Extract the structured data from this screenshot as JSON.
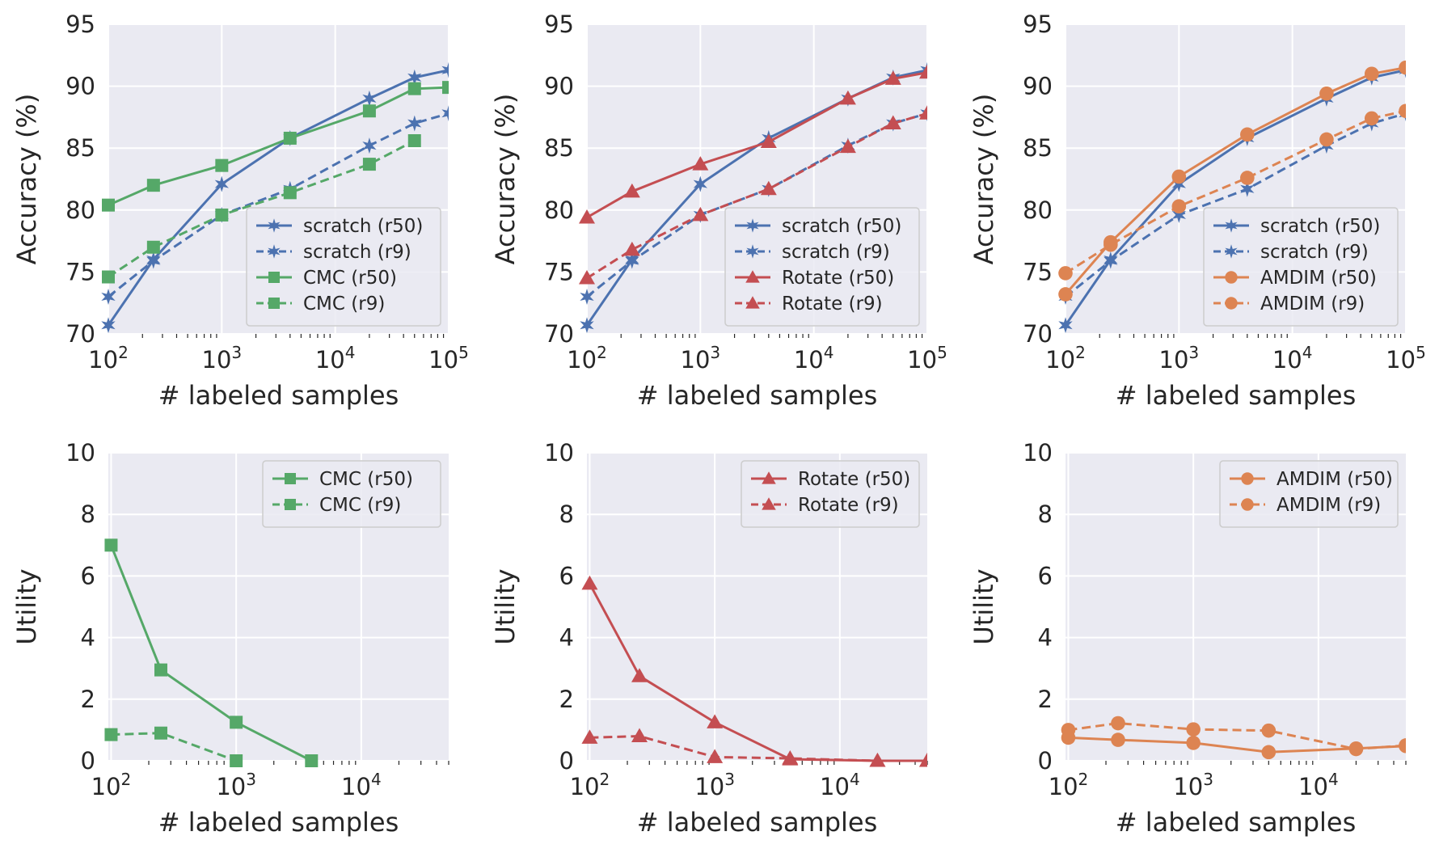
{
  "colors": {
    "scratch": "#4c72b0",
    "cmc": "#55a868",
    "rotate": "#c44e52",
    "amdim": "#dd8452",
    "panel_bg": "#eaeaf2",
    "grid": "#ffffff",
    "text": "#262626"
  },
  "chart_data": [
    {
      "type": "line",
      "xscale": "log",
      "xlim": [
        100,
        100000
      ],
      "ylim": [
        70,
        95
      ],
      "xticks": [
        100,
        1000,
        10000,
        100000
      ],
      "yticks": [
        70,
        75,
        80,
        85,
        90,
        95
      ],
      "xlabel": "# labeled samples",
      "ylabel": "Accuracy (%)",
      "legend": "lower-right",
      "series": [
        {
          "name": "scratch (r50)",
          "color": "#4c72b0",
          "marker": "star",
          "style": "solid",
          "x": [
            100,
            250,
            1000,
            4000,
            20000,
            50000,
            100000
          ],
          "y": [
            70.7,
            76.0,
            82.1,
            85.8,
            89.0,
            90.7,
            91.3
          ]
        },
        {
          "name": "scratch (r9)",
          "color": "#4c72b0",
          "marker": "star",
          "style": "dashed",
          "x": [
            100,
            250,
            1000,
            4000,
            20000,
            50000,
            100000
          ],
          "y": [
            73.0,
            75.9,
            79.6,
            81.7,
            85.2,
            87.0,
            87.8
          ]
        },
        {
          "name": "CMC (r50)",
          "color": "#55a868",
          "marker": "square",
          "style": "solid",
          "x": [
            100,
            250,
            1000,
            4000,
            20000,
            50000,
            100000
          ],
          "y": [
            80.4,
            82.0,
            83.6,
            85.8,
            88.0,
            89.8,
            89.9
          ]
        },
        {
          "name": "CMC (r9)",
          "color": "#55a868",
          "marker": "square",
          "style": "dashed",
          "x": [
            100,
            250,
            1000,
            4000,
            20000,
            50000
          ],
          "y": [
            74.6,
            77.0,
            79.6,
            81.4,
            83.7,
            85.6
          ]
        }
      ]
    },
    {
      "type": "line",
      "xscale": "log",
      "xlim": [
        100,
        100000
      ],
      "ylim": [
        70,
        95
      ],
      "xticks": [
        100,
        1000,
        10000,
        100000
      ],
      "yticks": [
        70,
        75,
        80,
        85,
        90,
        95
      ],
      "xlabel": "# labeled samples",
      "ylabel": "Accuracy (%)",
      "legend": "lower-right",
      "series": [
        {
          "name": "scratch (r50)",
          "color": "#4c72b0",
          "marker": "star",
          "style": "solid",
          "x": [
            100,
            250,
            1000,
            4000,
            20000,
            50000,
            100000
          ],
          "y": [
            70.7,
            76.0,
            82.1,
            85.8,
            89.0,
            90.7,
            91.3
          ]
        },
        {
          "name": "scratch (r9)",
          "color": "#4c72b0",
          "marker": "star",
          "style": "dashed",
          "x": [
            100,
            250,
            1000,
            4000,
            20000,
            50000,
            100000
          ],
          "y": [
            73.0,
            75.9,
            79.6,
            81.7,
            85.2,
            87.0,
            87.8
          ]
        },
        {
          "name": "Rotate (r50)",
          "color": "#c44e52",
          "marker": "triangle",
          "style": "solid",
          "x": [
            100,
            250,
            1000,
            4000,
            20000,
            50000,
            100000
          ],
          "y": [
            79.4,
            81.5,
            83.7,
            85.5,
            89.0,
            90.6,
            91.1
          ]
        },
        {
          "name": "Rotate (r9)",
          "color": "#c44e52",
          "marker": "triangle",
          "style": "dashed",
          "x": [
            100,
            250,
            1000,
            4000,
            20000,
            50000,
            100000
          ],
          "y": [
            74.5,
            76.8,
            79.6,
            81.7,
            85.1,
            87.0,
            87.8
          ]
        }
      ]
    },
    {
      "type": "line",
      "xscale": "log",
      "xlim": [
        100,
        100000
      ],
      "ylim": [
        70,
        95
      ],
      "xticks": [
        100,
        1000,
        10000,
        100000
      ],
      "yticks": [
        70,
        75,
        80,
        85,
        90,
        95
      ],
      "xlabel": "# labeled samples",
      "ylabel": "Accuracy (%)",
      "legend": "lower-right",
      "series": [
        {
          "name": "scratch (r50)",
          "color": "#4c72b0",
          "marker": "star",
          "style": "solid",
          "x": [
            100,
            250,
            1000,
            4000,
            20000,
            50000,
            100000
          ],
          "y": [
            70.7,
            76.0,
            82.1,
            85.8,
            89.0,
            90.7,
            91.3
          ]
        },
        {
          "name": "scratch (r9)",
          "color": "#4c72b0",
          "marker": "star",
          "style": "dashed",
          "x": [
            100,
            250,
            1000,
            4000,
            20000,
            50000,
            100000
          ],
          "y": [
            73.0,
            75.9,
            79.6,
            81.7,
            85.2,
            87.0,
            87.8
          ]
        },
        {
          "name": "AMDIM (r50)",
          "color": "#dd8452",
          "marker": "circle",
          "style": "solid",
          "x": [
            100,
            250,
            1000,
            4000,
            20000,
            50000,
            100000
          ],
          "y": [
            73.2,
            77.4,
            82.7,
            86.1,
            89.4,
            91.0,
            91.5
          ]
        },
        {
          "name": "AMDIM (r9)",
          "color": "#dd8452",
          "marker": "circle",
          "style": "dashed",
          "x": [
            100,
            250,
            1000,
            4000,
            20000,
            50000,
            100000
          ],
          "y": [
            74.9,
            77.2,
            80.3,
            82.6,
            85.7,
            87.4,
            88.0
          ]
        }
      ]
    },
    {
      "type": "line",
      "xscale": "log",
      "xlim": [
        95,
        50000
      ],
      "ylim": [
        0,
        10
      ],
      "xticks": [
        100,
        1000,
        10000
      ],
      "yticks": [
        0,
        2,
        4,
        6,
        8,
        10
      ],
      "xlabel": "# labeled samples",
      "ylabel": "Utility",
      "legend": "upper-right",
      "series": [
        {
          "name": "CMC (r50)",
          "color": "#55a868",
          "marker": "square",
          "style": "solid",
          "x": [
            100,
            250,
            1000,
            4000
          ],
          "y": [
            7.0,
            2.95,
            1.25,
            0.0
          ]
        },
        {
          "name": "CMC (r9)",
          "color": "#55a868",
          "marker": "square",
          "style": "dashed",
          "x": [
            100,
            250,
            1000
          ],
          "y": [
            0.85,
            0.9,
            0.0
          ]
        }
      ]
    },
    {
      "type": "line",
      "xscale": "log",
      "xlim": [
        95,
        50000
      ],
      "ylim": [
        0,
        10
      ],
      "xticks": [
        100,
        1000,
        10000
      ],
      "yticks": [
        0,
        2,
        4,
        6,
        8,
        10
      ],
      "xlabel": "# labeled samples",
      "ylabel": "Utility",
      "legend": "upper-right",
      "series": [
        {
          "name": "Rotate (r50)",
          "color": "#c44e52",
          "marker": "triangle",
          "style": "solid",
          "x": [
            100,
            250,
            1000,
            4000,
            20000,
            50000
          ],
          "y": [
            5.75,
            2.75,
            1.25,
            0.05,
            0.0,
            0.0
          ]
        },
        {
          "name": "Rotate (r9)",
          "color": "#c44e52",
          "marker": "triangle",
          "style": "dashed",
          "x": [
            100,
            250,
            1000,
            4000,
            20000,
            50000
          ],
          "y": [
            0.75,
            0.8,
            0.12,
            0.08,
            0.0,
            0.0
          ]
        }
      ]
    },
    {
      "type": "line",
      "xscale": "log",
      "xlim": [
        95,
        50000
      ],
      "ylim": [
        0,
        10
      ],
      "xticks": [
        100,
        1000,
        10000
      ],
      "yticks": [
        0,
        2,
        4,
        6,
        8,
        10
      ],
      "xlabel": "# labeled samples",
      "ylabel": "Utility",
      "legend": "upper-right",
      "series": [
        {
          "name": "AMDIM (r50)",
          "color": "#dd8452",
          "marker": "circle",
          "style": "solid",
          "x": [
            100,
            250,
            1000,
            4000,
            20000,
            50000
          ],
          "y": [
            0.75,
            0.68,
            0.58,
            0.28,
            0.4,
            0.48
          ]
        },
        {
          "name": "AMDIM (r9)",
          "color": "#dd8452",
          "marker": "circle",
          "style": "dashed",
          "x": [
            100,
            250,
            1000,
            4000,
            20000,
            50000
          ],
          "y": [
            1.0,
            1.22,
            1.02,
            0.98,
            0.38,
            0.5
          ]
        }
      ]
    }
  ]
}
